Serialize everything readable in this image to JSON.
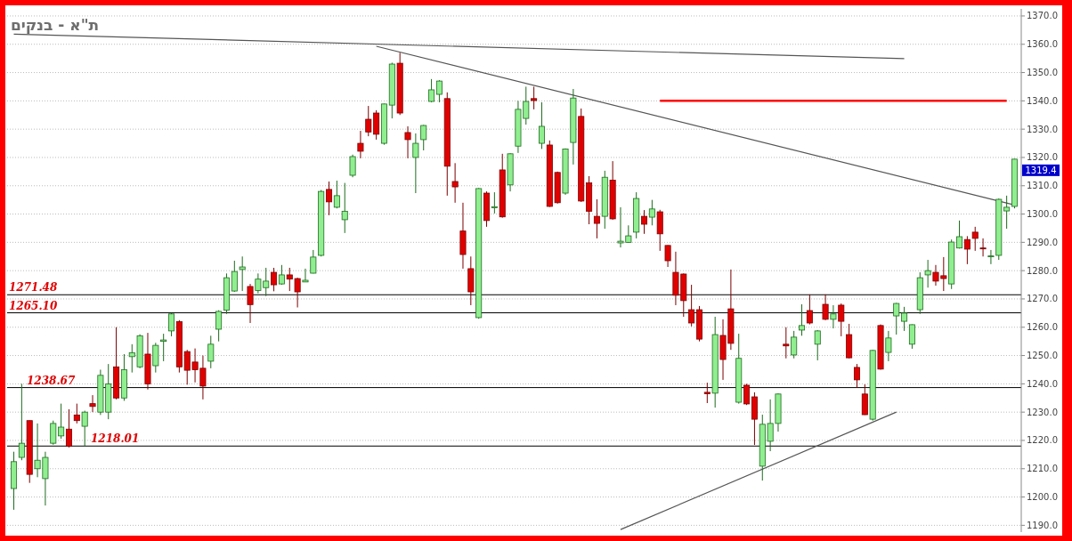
{
  "chart_data": {
    "type": "candlestick",
    "title": "ת\"א - בנקים",
    "categories": [
      null,
      null,
      null,
      null,
      null,
      null,
      null,
      null,
      null,
      null,
      null,
      null,
      null,
      null,
      null,
      null,
      null,
      null,
      null,
      null,
      null,
      null,
      null,
      null,
      null,
      null,
      null,
      null,
      null,
      null,
      null,
      null,
      null,
      null,
      null,
      null,
      null,
      null,
      null,
      null,
      null,
      null,
      null,
      null,
      null,
      null,
      null,
      null,
      null,
      null,
      null,
      null,
      null,
      null,
      null,
      null,
      null,
      null,
      null,
      null,
      null,
      null,
      null,
      null,
      null,
      null,
      null,
      null,
      null,
      null,
      null,
      null,
      null,
      null,
      null,
      null,
      null,
      null,
      null,
      null,
      null,
      null,
      null,
      null,
      null,
      null,
      null,
      null,
      null,
      null,
      null,
      null,
      null,
      null,
      null,
      null,
      null,
      null,
      null,
      null,
      null,
      null,
      null,
      null,
      null,
      null,
      null,
      null,
      null,
      null,
      null,
      null,
      null,
      null,
      null,
      null,
      null,
      null,
      null,
      null,
      null,
      null,
      null,
      null,
      null,
      null,
      null,
      null
    ],
    "ohlc": [
      [
        1203,
        1216,
        1195.5,
        1212.5
      ],
      [
        1214,
        1240,
        1213,
        1219
      ],
      [
        1227,
        1227,
        1205,
        1208
      ],
      [
        1210,
        1226,
        1207,
        1213
      ],
      [
        1206.5,
        1216,
        1197,
        1214
      ],
      [
        1219,
        1227,
        1218.5,
        1226
      ],
      [
        1221.6,
        1233,
        1220.6,
        1224.7
      ],
      [
        1224,
        1231,
        1217.5,
        1218
      ],
      [
        1229,
        1233,
        1226,
        1227
      ],
      [
        1225,
        1230.5,
        1218,
        1230
      ],
      [
        1233,
        1236,
        1230,
        1232
      ],
      [
        1230,
        1245,
        1229,
        1243
      ],
      [
        1230,
        1247,
        1227.5,
        1240
      ],
      [
        1246,
        1260,
        1234.5,
        1235
      ],
      [
        1235,
        1250.5,
        1234,
        1245
      ],
      [
        1249.6,
        1254,
        1244,
        1251
      ],
      [
        1246,
        1257.5,
        1245.5,
        1257
      ],
      [
        1250.5,
        1258,
        1238,
        1240
      ],
      [
        1246.4,
        1254.5,
        1244,
        1253.6
      ],
      [
        1255,
        1257.7,
        1248,
        1255.5
      ],
      [
        1258.7,
        1265,
        1256.8,
        1264.7
      ],
      [
        1262,
        1262.5,
        1244,
        1246
      ],
      [
        1251.4,
        1252,
        1239.7,
        1244.8
      ],
      [
        1247.7,
        1252.5,
        1240.5,
        1245
      ],
      [
        1245.5,
        1250,
        1234.5,
        1239.2
      ],
      [
        1248,
        1257,
        1245.5,
        1254
      ],
      [
        1259.3,
        1266,
        1255,
        1265.6
      ],
      [
        1266,
        1279,
        1264.7,
        1277.5
      ],
      [
        1272.8,
        1283.5,
        1272.5,
        1279.7
      ],
      [
        1280.4,
        1285,
        1272.8,
        1281.3
      ],
      [
        1274.4,
        1275.3,
        1261.5,
        1268
      ],
      [
        1273,
        1279,
        1272,
        1277
      ],
      [
        1274,
        1281,
        1271,
        1276.3
      ],
      [
        1279.4,
        1281,
        1272.7,
        1275
      ],
      [
        1275.3,
        1282,
        1275,
        1278.5
      ],
      [
        1278.5,
        1281,
        1272.8,
        1277
      ],
      [
        1277.2,
        1277.5,
        1267,
        1272.5
      ],
      [
        1276,
        1280.7,
        1276,
        1276.6
      ],
      [
        1279.1,
        1287.3,
        1279,
        1284.8
      ],
      [
        1285.4,
        1308.5,
        1285,
        1308
      ],
      [
        1308.7,
        1311.5,
        1299.6,
        1304.3
      ],
      [
        1302.4,
        1311.8,
        1302,
        1306.5
      ],
      [
        1298,
        1311,
        1293.3,
        1301
      ],
      [
        1313.7,
        1321,
        1313,
        1320.3
      ],
      [
        1325,
        1329.4,
        1319.7,
        1322.2
      ],
      [
        1333.5,
        1338.2,
        1327.5,
        1329
      ],
      [
        1335.7,
        1336.7,
        1326.3,
        1328.2
      ],
      [
        1325,
        1339,
        1324.5,
        1338.9
      ],
      [
        1338.5,
        1353.5,
        1333.8,
        1353
      ],
      [
        1353.3,
        1357,
        1335,
        1335.7
      ],
      [
        1328.8,
        1331,
        1319.7,
        1326.3
      ],
      [
        1320,
        1328.5,
        1307.4,
        1325
      ],
      [
        1326.3,
        1331.5,
        1322.5,
        1331.3
      ],
      [
        1339.8,
        1347.7,
        1339.5,
        1343.9
      ],
      [
        1342.3,
        1347.3,
        1339.5,
        1347
      ],
      [
        1340.8,
        1343,
        1306.5,
        1316.9
      ],
      [
        1311.5,
        1318,
        1304,
        1309.6
      ],
      [
        1294,
        1304,
        1280.7,
        1285.7
      ],
      [
        1280.7,
        1285,
        1267.8,
        1272.5
      ],
      [
        1263.4,
        1309.2,
        1263,
        1309
      ],
      [
        1307.4,
        1308,
        1295.5,
        1297.7
      ],
      [
        1302.2,
        1307.7,
        1300.2,
        1302.6
      ],
      [
        1315.6,
        1321.3,
        1298.7,
        1299
      ],
      [
        1310.3,
        1321.5,
        1308,
        1321.3
      ],
      [
        1324,
        1340,
        1321.6,
        1337
      ],
      [
        1333.8,
        1345,
        1331.6,
        1339.8
      ],
      [
        1340.8,
        1345,
        1337,
        1340.1
      ],
      [
        1325,
        1339.5,
        1323,
        1331
      ],
      [
        1324.4,
        1326,
        1302.5,
        1302.7
      ],
      [
        1314.7,
        1315,
        1303.7,
        1304
      ],
      [
        1307.4,
        1323.2,
        1306.8,
        1323
      ],
      [
        1325.3,
        1344.2,
        1317.5,
        1341
      ],
      [
        1334.5,
        1337.3,
        1304.3,
        1304.6
      ],
      [
        1311,
        1313.4,
        1296.4,
        1301
      ],
      [
        1299.2,
        1305.2,
        1291.4,
        1296.7
      ],
      [
        1299.2,
        1315.3,
        1294.8,
        1313
      ],
      [
        1312,
        1318.7,
        1298,
        1298.3
      ],
      [
        1289.8,
        1302.4,
        1288.2,
        1290.4
      ],
      [
        1290,
        1296,
        1289.8,
        1292.3
      ],
      [
        1293.6,
        1307.7,
        1291.4,
        1305.5
      ],
      [
        1299.2,
        1301.4,
        1293,
        1296.4
      ],
      [
        1298.9,
        1305,
        1296,
        1301.8
      ],
      [
        1300.8,
        1301.5,
        1287,
        1293
      ],
      [
        1288.9,
        1289,
        1281.3,
        1283.5
      ],
      [
        1279.4,
        1286.7,
        1267.8,
        1271.3
      ],
      [
        1278.8,
        1279,
        1263.7,
        1269.4
      ],
      [
        1266.2,
        1275,
        1260.3,
        1261.5
      ],
      [
        1266.2,
        1267.5,
        1255,
        1255.8
      ],
      [
        1237,
        1240.4,
        1233.2,
        1236.5
      ],
      [
        1236.7,
        1263.7,
        1231.6,
        1257.4
      ],
      [
        1257.1,
        1262.8,
        1241.4,
        1248.6
      ],
      [
        1266.5,
        1280.4,
        1252,
        1254.3
      ],
      [
        1233.5,
        1257.7,
        1233,
        1249
      ],
      [
        1239.5,
        1240,
        1232.5,
        1232.9
      ],
      [
        1235.4,
        1237,
        1218.4,
        1227.5
      ],
      [
        1210.9,
        1229.1,
        1205.8,
        1225.7
      ],
      [
        1219.7,
        1234.5,
        1216.2,
        1226
      ],
      [
        1226,
        1236.6,
        1223.1,
        1236.4
      ],
      [
        1254,
        1260,
        1249,
        1253.4
      ],
      [
        1250.2,
        1258.7,
        1249,
        1256.5
      ],
      [
        1259,
        1268.1,
        1257,
        1260.6
      ],
      [
        1265.9,
        1271.6,
        1261,
        1261.5
      ],
      [
        1254,
        1259,
        1248.3,
        1258.7
      ],
      [
        1268.1,
        1271.6,
        1262.5,
        1262.8
      ],
      [
        1262.8,
        1267.8,
        1259.6,
        1264.7
      ],
      [
        1267.8,
        1268.4,
        1256.8,
        1262.1
      ],
      [
        1257.4,
        1261.2,
        1249,
        1249.2
      ],
      [
        1245.8,
        1247,
        1238.6,
        1241.4
      ],
      [
        1236.4,
        1239.8,
        1229,
        1229.1
      ],
      [
        1227.5,
        1252,
        1227,
        1251.8
      ],
      [
        1260.6,
        1261,
        1245,
        1245.2
      ],
      [
        1251.1,
        1258.7,
        1248,
        1256.2
      ],
      [
        1264,
        1268.6,
        1257.4,
        1268.4
      ],
      [
        1262.1,
        1267.2,
        1258.7,
        1265
      ],
      [
        1254,
        1261,
        1252.4,
        1260.9
      ],
      [
        1266.2,
        1279.4,
        1264.7,
        1277.5
      ],
      [
        1278.5,
        1283.8,
        1274,
        1280
      ],
      [
        1279.4,
        1282,
        1274.7,
        1276.3
      ],
      [
        1278.2,
        1284.8,
        1272.8,
        1277.2
      ],
      [
        1275.3,
        1291,
        1273.5,
        1290.1
      ],
      [
        1288,
        1297.7,
        1287.8,
        1292
      ],
      [
        1291,
        1292.2,
        1282.3,
        1287.6
      ],
      [
        1293.6,
        1295.5,
        1287,
        1291.4
      ],
      [
        1288,
        1291.4,
        1285,
        1287.8
      ],
      [
        1285,
        1287.3,
        1282.3,
        1285.2
      ],
      [
        1285.4,
        1305.5,
        1283.8,
        1305.2
      ],
      [
        1301.1,
        1306.5,
        1294.8,
        1302.4
      ],
      [
        1302.7,
        1319.5,
        1302,
        1319.4
      ]
    ],
    "series": [
      {
        "type": "line",
        "color": "#555555",
        "values": [
          1363.6,
          null,
          null,
          null,
          null,
          null,
          null,
          null,
          null,
          null,
          null,
          null,
          null,
          null,
          null,
          null,
          null,
          null,
          null,
          null,
          null,
          null,
          null,
          null,
          null,
          null,
          null,
          null,
          null,
          null,
          null,
          null,
          null,
          null,
          null,
          null,
          null,
          null,
          null,
          null,
          null,
          null,
          null,
          null,
          null,
          null,
          null,
          null,
          null,
          null,
          null,
          null,
          null,
          null,
          null,
          null,
          null,
          null,
          null,
          null,
          null,
          null,
          null,
          null,
          null,
          null,
          null,
          null,
          null,
          null,
          null,
          null,
          null,
          null,
          null,
          null,
          null,
          null,
          null,
          null,
          null,
          null,
          null,
          null,
          null,
          null,
          null,
          null,
          null,
          null,
          null,
          null,
          null,
          null,
          null,
          null,
          null,
          null,
          null,
          null,
          null,
          null,
          null,
          null,
          null,
          null,
          null,
          null,
          null,
          null,
          null,
          null,
          null,
          1354.9,
          null,
          null,
          null,
          null,
          null,
          null,
          null,
          null,
          null,
          null,
          null,
          null,
          null,
          null
        ]
      },
      {
        "type": "line",
        "color": "#555555",
        "values": [
          null,
          null,
          null,
          null,
          null,
          null,
          null,
          null,
          null,
          null,
          null,
          null,
          null,
          null,
          null,
          null,
          null,
          null,
          null,
          null,
          null,
          null,
          null,
          null,
          null,
          null,
          null,
          null,
          null,
          null,
          null,
          null,
          null,
          null,
          null,
          null,
          null,
          null,
          null,
          null,
          null,
          null,
          null,
          null,
          null,
          null,
          1359.3,
          null,
          null,
          null,
          null,
          null,
          null,
          null,
          null,
          null,
          null,
          null,
          null,
          null,
          null,
          null,
          null,
          null,
          null,
          null,
          null,
          null,
          null,
          null,
          null,
          null,
          null,
          null,
          null,
          null,
          null,
          null,
          null,
          null,
          null,
          null,
          null,
          null,
          null,
          null,
          null,
          null,
          null,
          null,
          null,
          null,
          null,
          null,
          null,
          null,
          null,
          null,
          null,
          null,
          null,
          null,
          null,
          null,
          null,
          null,
          null,
          null,
          null,
          null,
          null,
          null,
          null,
          null,
          null,
          null,
          null,
          null,
          null,
          null,
          null,
          null,
          null,
          null,
          null,
          null,
          null,
          1303.2
        ]
      },
      {
        "type": "line",
        "color": "#555555",
        "values": [
          null,
          null,
          null,
          null,
          null,
          null,
          null,
          null,
          null,
          null,
          null,
          null,
          null,
          null,
          null,
          null,
          null,
          null,
          null,
          null,
          null,
          null,
          null,
          null,
          null,
          null,
          null,
          null,
          null,
          null,
          null,
          null,
          null,
          null,
          null,
          null,
          null,
          null,
          null,
          null,
          null,
          null,
          null,
          null,
          null,
          null,
          null,
          null,
          null,
          null,
          null,
          null,
          null,
          null,
          null,
          null,
          null,
          null,
          null,
          null,
          null,
          null,
          null,
          null,
          null,
          null,
          null,
          null,
          null,
          null,
          null,
          null,
          null,
          null,
          null,
          null,
          null,
          1188.5,
          null,
          null,
          null,
          null,
          null,
          null,
          null,
          null,
          null,
          null,
          null,
          null,
          null,
          null,
          null,
          null,
          null,
          null,
          null,
          null,
          null,
          null,
          null,
          null,
          null,
          null,
          null,
          null,
          null,
          null,
          null,
          null,
          null,
          null,
          1230,
          null,
          null,
          null,
          null,
          null,
          null,
          null,
          null,
          null,
          null,
          null,
          null,
          null,
          null,
          null
        ]
      },
      {
        "type": "line",
        "color": "#ff0000",
        "values": [
          null,
          null,
          null,
          null,
          null,
          null,
          null,
          null,
          null,
          null,
          null,
          null,
          null,
          null,
          null,
          null,
          null,
          null,
          null,
          null,
          null,
          null,
          null,
          null,
          null,
          null,
          null,
          null,
          null,
          null,
          null,
          null,
          null,
          null,
          null,
          null,
          null,
          null,
          null,
          null,
          null,
          null,
          null,
          null,
          null,
          null,
          null,
          null,
          null,
          null,
          null,
          null,
          null,
          null,
          null,
          null,
          null,
          null,
          null,
          null,
          null,
          null,
          null,
          null,
          null,
          null,
          null,
          null,
          null,
          null,
          null,
          null,
          null,
          null,
          null,
          null,
          null,
          null,
          null,
          null,
          null,
          null,
          1340,
          null,
          null,
          null,
          null,
          null,
          null,
          null,
          null,
          null,
          null,
          null,
          null,
          null,
          null,
          null,
          null,
          null,
          null,
          null,
          null,
          null,
          null,
          null,
          null,
          null,
          null,
          null,
          null,
          null,
          null,
          null,
          null,
          null,
          null,
          null,
          null,
          null,
          null,
          null,
          null,
          null,
          null,
          null,
          1340,
          null
        ]
      }
    ],
    "ylim": [
      1187.6,
      1372.5
    ],
    "yticks": [
      {
        "value": 1190,
        "label": "1190.0"
      },
      {
        "value": 1200,
        "label": "1200.0"
      },
      {
        "value": 1210,
        "label": "1210.0"
      },
      {
        "value": 1220,
        "label": "1220.0"
      },
      {
        "value": 1230,
        "label": "1230.0"
      },
      {
        "value": 1240,
        "label": "1240.0"
      },
      {
        "value": 1250,
        "label": "1250.0"
      },
      {
        "value": 1260,
        "label": "1260.0"
      },
      {
        "value": 1270,
        "label": "1270.0"
      },
      {
        "value": 1280,
        "label": "1280.0"
      },
      {
        "value": 1290,
        "label": "1290.0"
      },
      {
        "value": 1300,
        "label": "1300.0"
      },
      {
        "value": 1310,
        "label": "1310.0"
      },
      {
        "value": 1320,
        "label": "1320.0"
      },
      {
        "value": 1330,
        "label": "1330.0"
      },
      {
        "value": 1340,
        "label": "1340.0"
      },
      {
        "value": 1350,
        "label": "1350.0"
      },
      {
        "value": 1360,
        "label": "1360.0"
      },
      {
        "value": 1370,
        "label": "1370.0"
      }
    ],
    "grid": "y",
    "ref_lines": [
      {
        "axis": "y",
        "value": 1271.48,
        "label": "1271.48",
        "color": "#000000"
      },
      {
        "axis": "y",
        "value": 1265.1,
        "label": "1265.10",
        "color": "#000000"
      },
      {
        "axis": "y",
        "value": 1238.67,
        "label": "1238.67",
        "color": "#000000"
      },
      {
        "axis": "y",
        "value": 1218.01,
        "label": "1218.01",
        "color": "#000000"
      }
    ],
    "annotations": [
      "1319.4"
    ]
  }
}
